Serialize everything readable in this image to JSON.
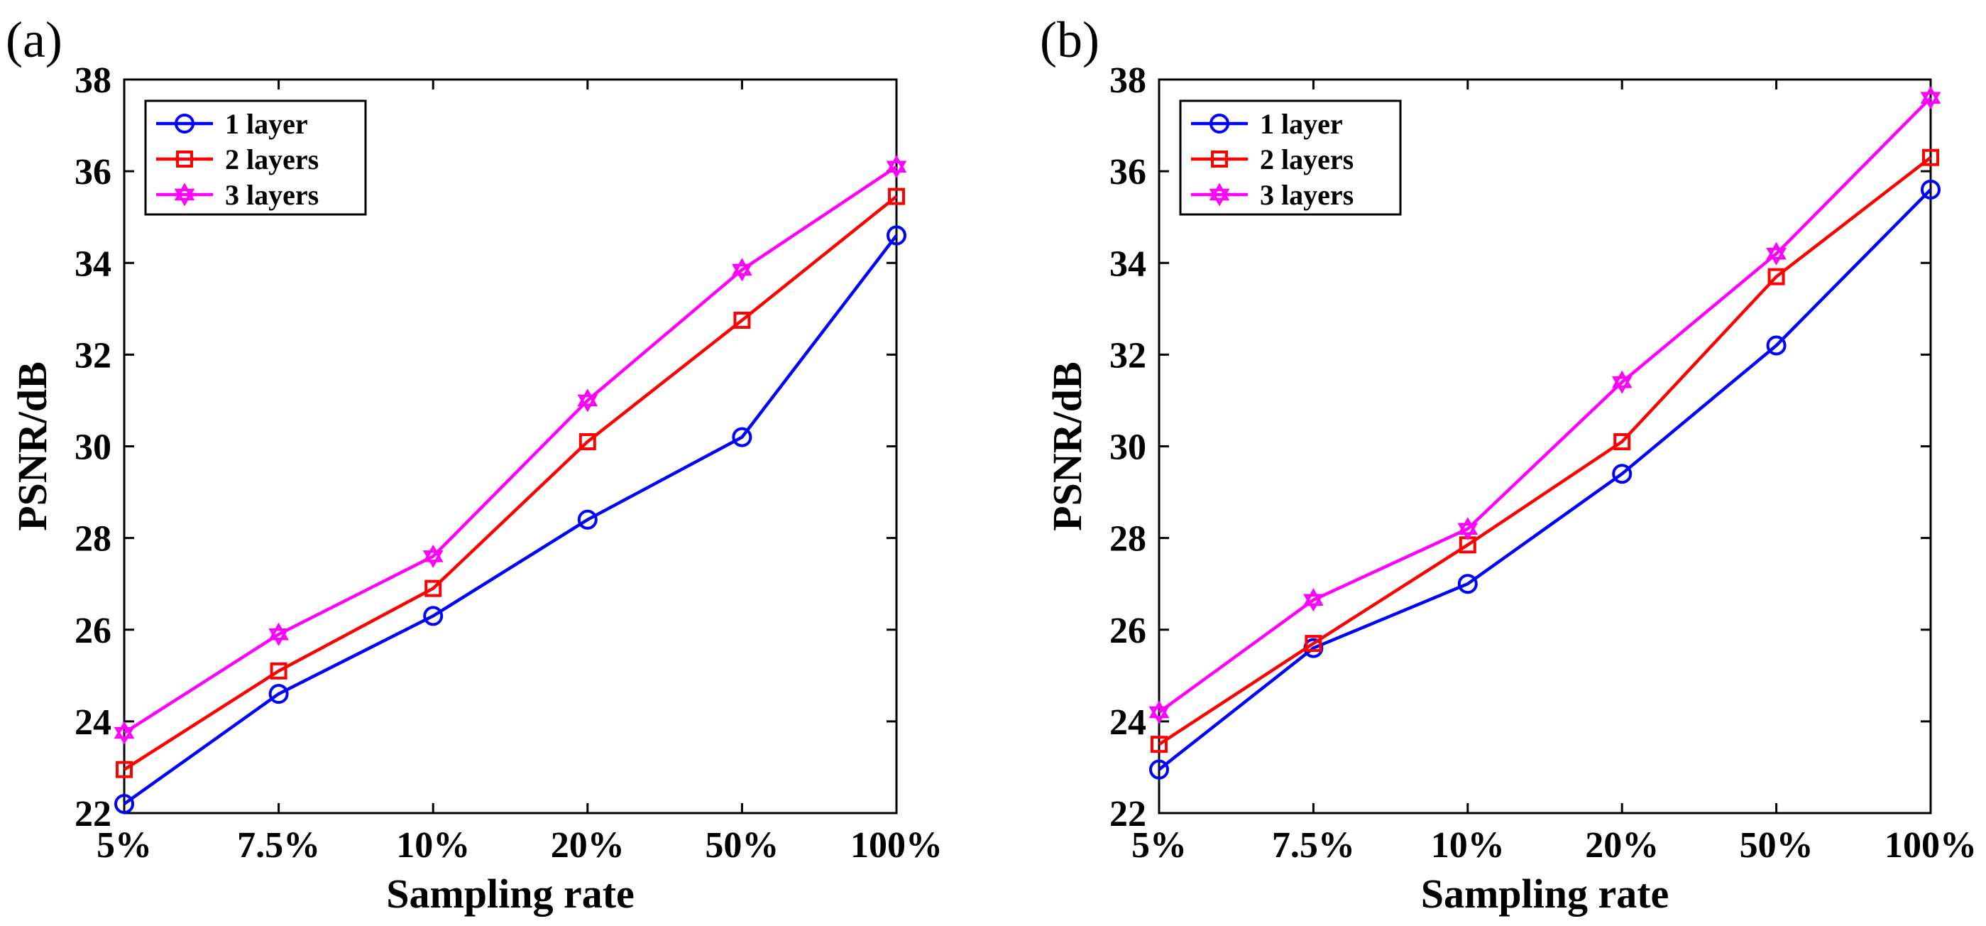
{
  "chart_data": [
    {
      "type": "line",
      "panel_label": "(a)",
      "xlabel": "Sampling rate",
      "ylabel": "PSNR/dB",
      "categories": [
        "5%",
        "7.5%",
        "10%",
        "20%",
        "50%",
        "100%"
      ],
      "ylim": [
        22,
        38
      ],
      "yticks": [
        22,
        24,
        26,
        28,
        30,
        32,
        34,
        36,
        38
      ],
      "legend_position": "top-left",
      "grid": false,
      "series": [
        {
          "name": "1 layer",
          "color": "#0000FF",
          "marker": "circle",
          "values": [
            22.2,
            24.6,
            26.3,
            28.4,
            30.2,
            34.6
          ]
        },
        {
          "name": "2 layers",
          "color": "#FF0000",
          "marker": "square",
          "values": [
            22.95,
            25.1,
            26.9,
            30.1,
            32.75,
            35.45
          ]
        },
        {
          "name": "3 layers",
          "color": "#FF00FF",
          "marker": "hexagram",
          "values": [
            23.75,
            25.9,
            27.6,
            31.0,
            33.85,
            36.1
          ]
        }
      ]
    },
    {
      "type": "line",
      "panel_label": "(b)",
      "xlabel": "Sampling rate",
      "ylabel": "PSNR/dB",
      "categories": [
        "5%",
        "7.5%",
        "10%",
        "20%",
        "50%",
        "100%"
      ],
      "ylim": [
        22,
        38
      ],
      "yticks": [
        22,
        24,
        26,
        28,
        30,
        32,
        34,
        36,
        38
      ],
      "legend_position": "top-left",
      "grid": false,
      "series": [
        {
          "name": "1 layer",
          "color": "#0000FF",
          "marker": "circle",
          "values": [
            22.95,
            25.6,
            27.0,
            29.4,
            32.2,
            35.6
          ]
        },
        {
          "name": "2 layers",
          "color": "#FF0000",
          "marker": "square",
          "values": [
            23.5,
            25.7,
            27.85,
            30.1,
            33.7,
            36.3
          ]
        },
        {
          "name": "3 layers",
          "color": "#FF00FF",
          "marker": "hexagram",
          "values": [
            24.2,
            26.65,
            28.2,
            31.4,
            34.2,
            37.6
          ]
        }
      ]
    }
  ]
}
